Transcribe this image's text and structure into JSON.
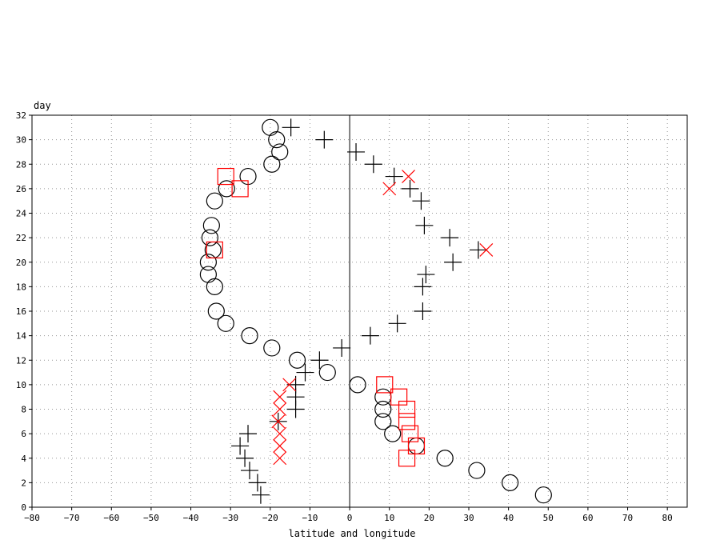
{
  "chart_data": {
    "type": "scatter",
    "title": "",
    "ylabel": "day",
    "xlabel": "latitude and longitude",
    "xlim": [
      -80,
      85
    ],
    "ylim": [
      0,
      32
    ],
    "xticks": [
      -80,
      -70,
      -60,
      -50,
      -40,
      -30,
      -20,
      -10,
      0,
      10,
      20,
      30,
      40,
      50,
      60,
      70,
      80
    ],
    "yticks": [
      0,
      2,
      4,
      6,
      8,
      10,
      12,
      14,
      16,
      18,
      20,
      22,
      24,
      26,
      28,
      30,
      32
    ],
    "xtick_labels": [
      "−80",
      "−70",
      "−60",
      "−50",
      "−40",
      "−30",
      "−20",
      "−10",
      "0",
      "10",
      "20",
      "30",
      "40",
      "50",
      "60",
      "70",
      "80"
    ],
    "ytick_labels": [
      "0",
      "2",
      "4",
      "6",
      "8",
      "10",
      "12",
      "14",
      "16",
      "18",
      "20",
      "22",
      "24",
      "26",
      "28",
      "30",
      "32"
    ],
    "grid": true,
    "zero_line_x": 0,
    "series": [
      {
        "marker": "circle",
        "color": "#000000",
        "points": [
          [
            48.8,
            1
          ],
          [
            40.4,
            2
          ],
          [
            32,
            3
          ],
          [
            24,
            4
          ],
          [
            16.8,
            5
          ],
          [
            10.8,
            6
          ],
          [
            8.4,
            7
          ],
          [
            8.4,
            8
          ],
          [
            8.4,
            9
          ],
          [
            2,
            10
          ],
          [
            -5.6,
            11
          ],
          [
            -13.2,
            12
          ],
          [
            -19.6,
            13
          ],
          [
            -25.2,
            14
          ],
          [
            -31.2,
            15
          ],
          [
            -33.6,
            16
          ],
          [
            -34,
            18
          ],
          [
            -35.6,
            19
          ],
          [
            -35.6,
            20
          ],
          [
            -34.4,
            21
          ],
          [
            -35.2,
            22
          ],
          [
            -34.8,
            23
          ],
          [
            -34,
            25
          ],
          [
            -31,
            26
          ],
          [
            -25.6,
            27
          ],
          [
            -19.6,
            28
          ],
          [
            -17.6,
            29
          ],
          [
            -18.4,
            30
          ],
          [
            -20,
            31
          ]
        ]
      },
      {
        "marker": "plus",
        "color": "#000000",
        "points": [
          [
            -22.4,
            1
          ],
          [
            -23.2,
            2
          ],
          [
            -25.2,
            3
          ],
          [
            -26.4,
            4
          ],
          [
            -27.6,
            5
          ],
          [
            -25.6,
            6
          ],
          [
            -18,
            7
          ],
          [
            -13.6,
            8
          ],
          [
            -13.6,
            9
          ],
          [
            -13.6,
            10
          ],
          [
            -11.2,
            11
          ],
          [
            -7.6,
            12
          ],
          [
            -2,
            13
          ],
          [
            5.2,
            14
          ],
          [
            12,
            15
          ],
          [
            18.4,
            16
          ],
          [
            18.4,
            18
          ],
          [
            19.2,
            19
          ],
          [
            26,
            20
          ],
          [
            32.4,
            21
          ],
          [
            25.2,
            22
          ],
          [
            18.8,
            23
          ],
          [
            18,
            25
          ],
          [
            15.2,
            26
          ],
          [
            11.2,
            27
          ],
          [
            6,
            28
          ],
          [
            1.6,
            29
          ],
          [
            -6.4,
            30
          ],
          [
            -14.8,
            31
          ]
        ]
      },
      {
        "marker": "square",
        "color": "#ff0000",
        "points": [
          [
            14.4,
            4
          ],
          [
            16.8,
            5
          ],
          [
            15.2,
            6
          ],
          [
            14.4,
            7
          ],
          [
            14.4,
            8
          ],
          [
            12.4,
            9
          ],
          [
            8.8,
            10
          ],
          [
            -34,
            21
          ],
          [
            -27.6,
            26
          ],
          [
            -31.2,
            27
          ]
        ]
      },
      {
        "marker": "x",
        "color": "#ff0000",
        "points": [
          [
            -17.6,
            4
          ],
          [
            -17.6,
            5
          ],
          [
            -17.6,
            6
          ],
          [
            -18,
            7
          ],
          [
            -17.6,
            8
          ],
          [
            -17.6,
            9
          ],
          [
            -15.2,
            10
          ],
          [
            34.4,
            21
          ],
          [
            10,
            26
          ],
          [
            14.8,
            27
          ]
        ]
      }
    ]
  }
}
